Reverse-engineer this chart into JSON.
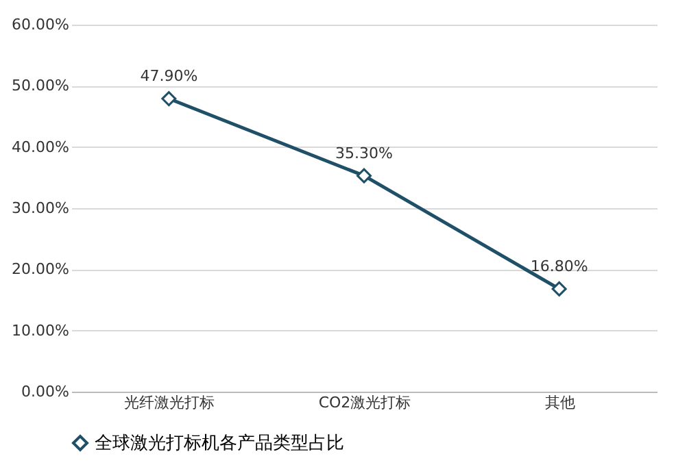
{
  "chart_data": {
    "type": "line",
    "categories": [
      "光纤激光打标",
      "CO2激光打标",
      "其他"
    ],
    "series": [
      {
        "name": "全球激光打标机各产品类型占比",
        "color": "#1f5068",
        "values": [
          47.9,
          35.3,
          16.8
        ],
        "value_labels": [
          "47.90%",
          "35.30%",
          "16.80%"
        ]
      }
    ],
    "ylim": [
      0,
      60
    ],
    "yticks": [
      {
        "value": 0,
        "label": "0.00%"
      },
      {
        "value": 10,
        "label": "10.00%"
      },
      {
        "value": 20,
        "label": "20.00%"
      },
      {
        "value": 30,
        "label": "30.00%"
      },
      {
        "value": 40,
        "label": "40.00%"
      },
      {
        "value": 50,
        "label": "50.00%"
      },
      {
        "value": 60,
        "label": "60.00%"
      }
    ],
    "grid": "y",
    "legend": "bottom",
    "marker": "diamond",
    "line_style": "solid"
  }
}
